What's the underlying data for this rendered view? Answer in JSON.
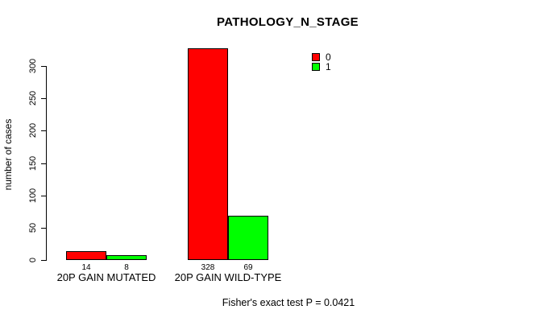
{
  "chart_data": {
    "type": "bar",
    "title": "PATHOLOGY_N_STAGE",
    "xlabel": "",
    "ylabel": "number of cases",
    "categories": [
      "20P GAIN MUTATED",
      "20P GAIN WILD-TYPE"
    ],
    "series": [
      {
        "name": "0",
        "color": "#ff0000",
        "values": [
          14,
          328
        ]
      },
      {
        "name": "1",
        "color": "#00ff00",
        "values": [
          8,
          69
        ]
      }
    ],
    "bar_value_labels": [
      [
        "14",
        "8"
      ],
      [
        "328",
        "69"
      ]
    ],
    "yticks": [
      0,
      50,
      100,
      150,
      200,
      250,
      300
    ],
    "ylim": [
      0,
      300
    ],
    "grid": false,
    "legend_position": "top-right-inside",
    "bar_border_color": "#000000",
    "annotation": "Fisher's exact test P = 0.0421"
  }
}
